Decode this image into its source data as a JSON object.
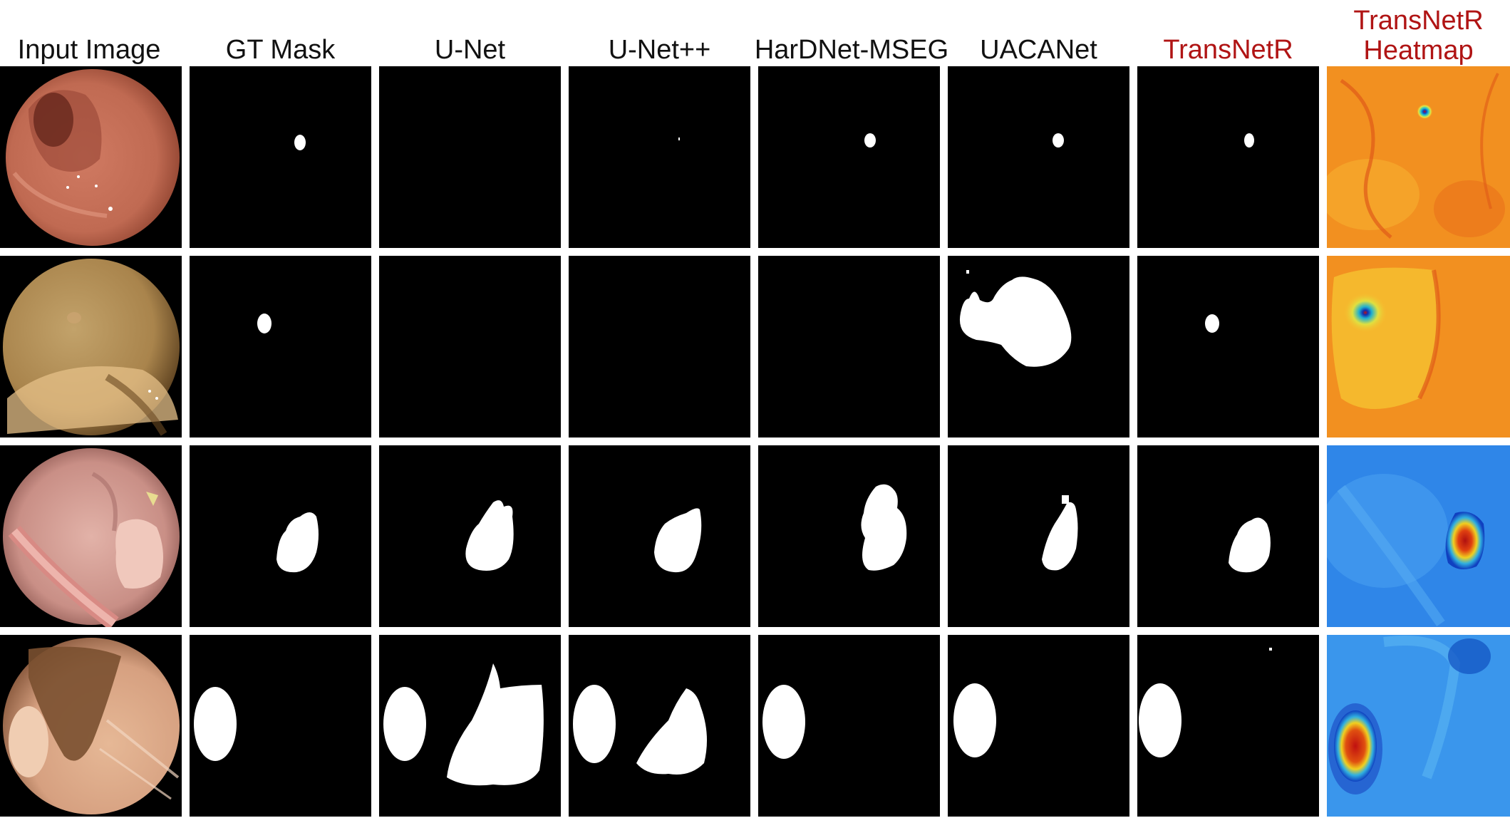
{
  "headers": [
    "Input Image",
    "GT Mask",
    "U-Net",
    "U-Net++",
    "HarDNet-MSEG",
    "UACANet",
    "TransNetR",
    "TransNetR Heatmap"
  ],
  "header_colors": {
    "default": "#111111",
    "highlight": "#b01414"
  },
  "heatmap_title_lines": [
    "TransNetR",
    "Heatmap"
  ]
}
